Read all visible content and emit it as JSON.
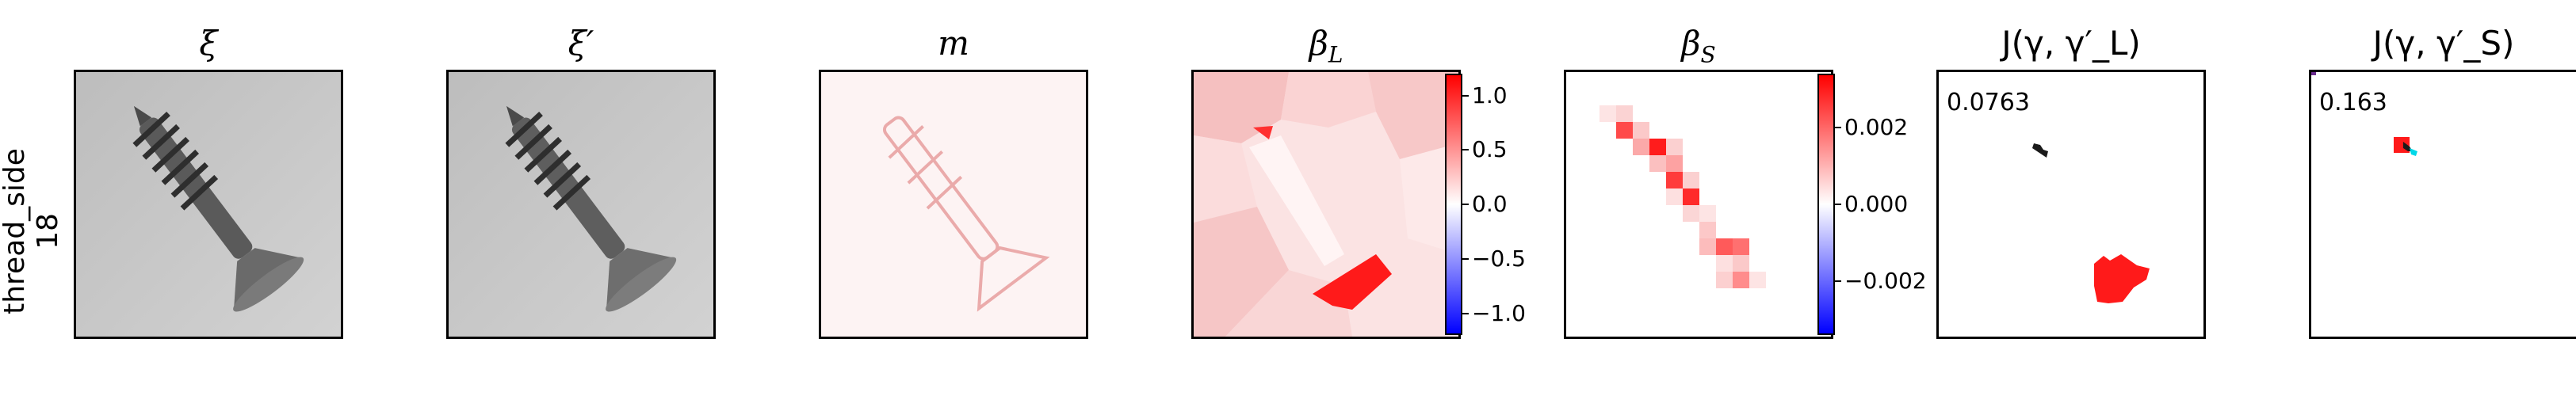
{
  "row_label": {
    "line1": "thread_side",
    "line2": "18"
  },
  "panels": [
    {
      "title": "ξ"
    },
    {
      "title": "ξ′"
    },
    {
      "title": "m"
    },
    {
      "title": "β_L"
    },
    {
      "title": "β_S"
    },
    {
      "title": "J(γ, γ′_L)"
    },
    {
      "title": "J(γ, γ′_S)"
    }
  ],
  "colorbar_L": {
    "ticks": [
      "1.0",
      "0.5",
      "0.0",
      "−0.5",
      "−1.0"
    ],
    "range": [
      -1.2,
      1.2
    ]
  },
  "colorbar_S": {
    "ticks": [
      "0.002",
      "0.000",
      "−0.002"
    ],
    "range": [
      -0.0034,
      0.0034
    ]
  },
  "scores": {
    "jl": "0.0763",
    "js": "0.163"
  },
  "colors": {
    "positive": "#ff0000",
    "negative": "#0000ff",
    "neutral": "#ffffff",
    "mask_match": "#00d8e8"
  }
}
